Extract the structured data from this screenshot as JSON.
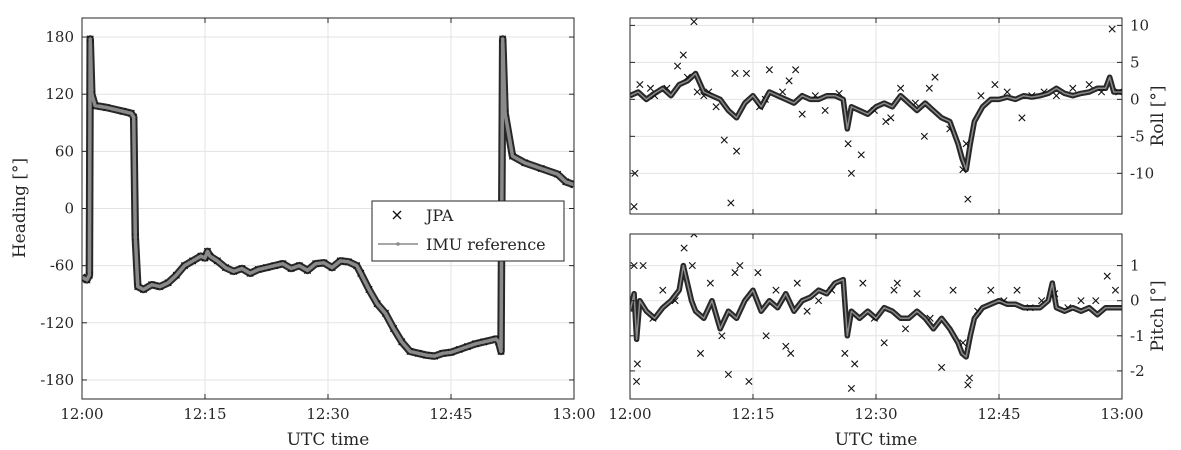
{
  "colors": {
    "jpa": "#111111",
    "imu": "#8a8a8a",
    "grid": "#e3e3e3",
    "axis": "#262626"
  },
  "legend": {
    "placement": "inside-right-middle",
    "entries": [
      "JPA",
      "IMU reference"
    ]
  },
  "chart_data": [
    {
      "type": "line",
      "xlabel": "UTC time",
      "ylabel": "Heading [°]",
      "x_ticks": [
        "12:00",
        "12:15",
        "12:30",
        "12:45",
        "13:00"
      ],
      "xlim_minutes": [
        0,
        60
      ],
      "y_ticks": [
        "180",
        "120",
        "60",
        "0",
        "-60",
        "-120",
        "-180"
      ],
      "ylim": [
        -200,
        200
      ],
      "grid": true,
      "series": [
        {
          "name": "JPA",
          "marker": "x",
          "x_minutes": [
            0,
            0.6,
            0.9,
            1.0,
            1.2,
            1.6,
            3,
            5,
            6,
            6.3,
            6.5,
            6.8,
            7.5,
            8.5,
            9.5,
            10.5,
            11.5,
            12.5,
            13.5,
            14.5,
            15.0,
            15.3,
            15.6,
            16.5,
            17.5,
            18.5,
            19.5,
            20.5,
            21.5,
            22.5,
            23.5,
            24.5,
            25.5,
            26.5,
            27.5,
            28.5,
            29.5,
            30.5,
            31.5,
            32.5,
            33.5,
            34,
            35,
            36,
            37,
            38,
            39,
            40,
            41,
            42,
            43,
            44,
            45,
            46,
            47,
            48,
            49,
            50.5,
            50.8,
            51.1,
            51.3,
            51.6,
            52.5,
            54,
            56,
            58,
            59,
            60
          ],
          "y_deg": [
            -72,
            -75,
            -70,
            178,
            120,
            108,
            106,
            102,
            100,
            96,
            -30,
            -82,
            -85,
            -80,
            -82,
            -78,
            -70,
            -60,
            -55,
            -50,
            -52,
            -45,
            -50,
            -55,
            -62,
            -66,
            -63,
            -68,
            -64,
            -62,
            -60,
            -58,
            -63,
            -60,
            -65,
            -58,
            -57,
            -62,
            -55,
            -56,
            -60,
            -68,
            -85,
            -100,
            -110,
            -126,
            -140,
            -150,
            -152,
            -154,
            -155,
            -152,
            -151,
            -148,
            -145,
            -142,
            -140,
            -137,
            -140,
            -150,
            178,
            100,
            55,
            48,
            42,
            36,
            28,
            25
          ]
        },
        {
          "name": "IMU reference",
          "marker": "none",
          "x_minutes": [
            0,
            0.6,
            0.9,
            1.0,
            1.2,
            1.6,
            3,
            5,
            6,
            6.3,
            6.5,
            6.8,
            7.5,
            8.5,
            9.5,
            10.5,
            11.5,
            12.5,
            13.5,
            14.5,
            15.0,
            15.3,
            15.6,
            16.5,
            17.5,
            18.5,
            19.5,
            20.5,
            21.5,
            22.5,
            23.5,
            24.5,
            25.5,
            26.5,
            27.5,
            28.5,
            29.5,
            30.5,
            31.5,
            32.5,
            33.5,
            34,
            35,
            36,
            37,
            38,
            39,
            40,
            41,
            42,
            43,
            44,
            45,
            46,
            47,
            48,
            49,
            50.5,
            50.8,
            51.1,
            51.3,
            51.6,
            52.5,
            54,
            56,
            58,
            59,
            60
          ],
          "y_deg": [
            -72,
            -75,
            -70,
            178,
            120,
            108,
            106,
            102,
            100,
            96,
            -30,
            -82,
            -85,
            -80,
            -82,
            -78,
            -70,
            -60,
            -55,
            -50,
            -52,
            -45,
            -50,
            -55,
            -62,
            -66,
            -63,
            -68,
            -64,
            -62,
            -60,
            -58,
            -63,
            -60,
            -65,
            -58,
            -57,
            -62,
            -55,
            -56,
            -60,
            -68,
            -85,
            -100,
            -110,
            -126,
            -140,
            -150,
            -152,
            -154,
            -155,
            -152,
            -151,
            -148,
            -145,
            -142,
            -140,
            -137,
            -140,
            -150,
            178,
            100,
            55,
            48,
            42,
            36,
            28,
            25
          ]
        }
      ]
    },
    {
      "type": "line",
      "ylabel": "Roll [°]",
      "y_axis_side": "right",
      "y_ticks": [
        "10",
        "5",
        "0",
        "-5",
        "-10"
      ],
      "ylim": [
        -15.5,
        11
      ],
      "xlim_minutes": [
        0,
        60
      ],
      "grid": true,
      "series": [
        {
          "name": "JPA",
          "marker": "x",
          "x_minutes": [
            0.5,
            1.2,
            3.0,
            4.5,
            5.8,
            7.0,
            7.8,
            8.2,
            9.0,
            10.5,
            11.5,
            12.3,
            13.0,
            14.2,
            15.8,
            17.0,
            18.6,
            19.4,
            21.0,
            22.6,
            23.8,
            25.5,
            27.0,
            28.2,
            29.8,
            31.2,
            33.0,
            34.8,
            35.9,
            37.2,
            39.0,
            40.6,
            41.2,
            42.8,
            44.5,
            46.0,
            47.8,
            49.0,
            50.5,
            52.0,
            54.0,
            56.0,
            57.5,
            58.8,
            59.6,
            0.6,
            2.5,
            6.5,
            9.6,
            12.8,
            16.5,
            20.2,
            26.6,
            31.8,
            36.5,
            41.0
          ],
          "y": [
            -14.5,
            2.0,
            0.5,
            1.5,
            4.5,
            3.0,
            10.5,
            1.0,
            0.5,
            -1.0,
            -5.5,
            -14.0,
            -7.0,
            3.5,
            -1.0,
            4.0,
            1.0,
            2.5,
            -2.0,
            0.5,
            -1.5,
            0.8,
            -10.0,
            -7.5,
            -1.5,
            -3.0,
            1.5,
            -0.5,
            -5.0,
            3.0,
            -4.0,
            -9.5,
            -13.5,
            0.5,
            2.0,
            1.0,
            -2.5,
            0.5,
            1.0,
            0.5,
            1.5,
            2.0,
            1.0,
            9.5,
            1.0,
            -10.0,
            1.5,
            6.0,
            1.0,
            3.5,
            0.0,
            4.0,
            -6.0,
            -2.5,
            1.5,
            -6.0
          ]
        },
        {
          "name": "IMU reference",
          "marker": "none",
          "x_minutes": [
            0,
            1,
            2,
            3,
            4,
            5,
            6,
            7,
            8,
            9,
            10,
            11,
            12,
            13,
            14,
            15,
            16,
            17,
            18,
            19,
            20,
            21,
            22,
            23,
            24,
            25,
            26,
            26.5,
            27,
            28,
            29,
            30,
            31,
            32,
            33,
            34,
            35,
            36,
            37,
            38,
            39,
            40,
            40.5,
            41,
            41.5,
            42,
            43,
            44,
            45,
            46,
            47,
            48,
            49,
            50,
            51,
            52,
            53,
            54,
            55,
            56,
            57,
            58,
            58.5,
            59,
            60
          ],
          "y": [
            0.5,
            1.0,
            0.0,
            0.8,
            1.5,
            0.5,
            2.0,
            2.5,
            3.5,
            1.0,
            0.5,
            0.0,
            -1.5,
            -2.5,
            -0.5,
            0.5,
            -1.0,
            1.0,
            0.5,
            0.0,
            -0.5,
            0.5,
            0.0,
            0.0,
            0.5,
            0.5,
            0.0,
            -4.0,
            -1.0,
            -1.5,
            -2.0,
            -1.0,
            -0.5,
            -1.0,
            0.5,
            -0.5,
            -1.5,
            -0.5,
            -1.5,
            -2.5,
            -3.0,
            -6.0,
            -8.0,
            -9.5,
            -6.0,
            -3.0,
            -1.0,
            0.0,
            0.0,
            0.3,
            0.0,
            0.5,
            0.3,
            0.5,
            0.8,
            1.5,
            0.8,
            0.5,
            0.8,
            1.0,
            1.5,
            1.5,
            3.0,
            1.0,
            1.0
          ]
        }
      ]
    },
    {
      "type": "line",
      "xlabel": "UTC time",
      "ylabel": "Pitch [°]",
      "y_axis_side": "right",
      "x_ticks": [
        "12:00",
        "12:15",
        "12:30",
        "12:45",
        "13:00"
      ],
      "xlim_minutes": [
        0,
        60
      ],
      "y_ticks": [
        "1",
        "0",
        "-1",
        "-2"
      ],
      "ylim": [
        -2.8,
        1.9
      ],
      "grid": true,
      "series": [
        {
          "name": "JPA",
          "marker": "x",
          "x_minutes": [
            0.5,
            0.8,
            1.6,
            2.8,
            4.0,
            5.5,
            6.6,
            7.8,
            8.6,
            9.8,
            11.2,
            12.0,
            13.4,
            14.5,
            15.6,
            16.6,
            17.8,
            19.0,
            20.4,
            21.6,
            23.0,
            24.6,
            26.2,
            27.0,
            28.4,
            29.8,
            31.0,
            32.2,
            33.6,
            35.0,
            36.6,
            38.0,
            39.4,
            40.6,
            41.4,
            42.4,
            44.0,
            45.6,
            47.2,
            48.8,
            50.2,
            51.8,
            53.4,
            55.0,
            56.8,
            58.2,
            59.2,
            0.9,
            7.6,
            12.8,
            19.6,
            27.4,
            32.6,
            41.2
          ],
          "y": [
            1.0,
            -2.3,
            1.0,
            -0.5,
            0.3,
            0.0,
            1.5,
            1.9,
            -1.5,
            0.5,
            -1.0,
            -2.1,
            1.0,
            -2.3,
            0.8,
            -1.0,
            0.3,
            -1.3,
            0.5,
            -0.3,
            0.0,
            0.3,
            -1.5,
            -2.5,
            0.5,
            -0.5,
            -1.2,
            0.3,
            -0.8,
            0.2,
            -0.5,
            -1.9,
            0.3,
            -1.2,
            -2.2,
            -0.3,
            0.3,
            0.0,
            0.3,
            -0.2,
            0.0,
            0.2,
            -0.2,
            0.0,
            0.0,
            0.7,
            0.3,
            -1.8,
            1.0,
            0.8,
            -1.5,
            -1.8,
            0.5,
            -2.4
          ]
        },
        {
          "name": "IMU reference",
          "marker": "none",
          "x_minutes": [
            0,
            0.5,
            0.8,
            1.2,
            2,
            3,
            4,
            5,
            6,
            6.5,
            7,
            7.5,
            8,
            9,
            10,
            11,
            12,
            13,
            14,
            15,
            16,
            17,
            18,
            19,
            20,
            21,
            22,
            23,
            24,
            25,
            26,
            26.5,
            27,
            28,
            29,
            30,
            31,
            32,
            33,
            34,
            35,
            36,
            37,
            38,
            39,
            40,
            40.5,
            41,
            41.5,
            42,
            43,
            44,
            45,
            46,
            47,
            48,
            49,
            50,
            51,
            51.5,
            52,
            53,
            54,
            55,
            56,
            57,
            58,
            59,
            60
          ],
          "y": [
            -0.3,
            0.2,
            -1.1,
            0.0,
            -0.3,
            -0.5,
            -0.2,
            0.0,
            0.3,
            1.0,
            0.5,
            0.0,
            -0.3,
            -0.5,
            0.0,
            -0.8,
            -0.3,
            -0.5,
            0.0,
            0.3,
            -0.3,
            0.0,
            -0.2,
            0.2,
            -0.3,
            0.0,
            0.1,
            0.3,
            0.2,
            0.5,
            0.6,
            -1.0,
            -0.3,
            -0.5,
            -0.3,
            -0.5,
            -0.2,
            -0.3,
            -0.5,
            -0.5,
            -0.3,
            -0.5,
            -0.8,
            -0.5,
            -0.8,
            -1.2,
            -1.5,
            -1.6,
            -1.0,
            -0.5,
            -0.2,
            -0.1,
            0.0,
            -0.1,
            -0.1,
            -0.2,
            -0.2,
            -0.2,
            0.0,
            0.5,
            -0.2,
            -0.3,
            -0.2,
            -0.3,
            -0.2,
            -0.4,
            -0.2,
            -0.2,
            -0.2
          ]
        }
      ]
    }
  ]
}
